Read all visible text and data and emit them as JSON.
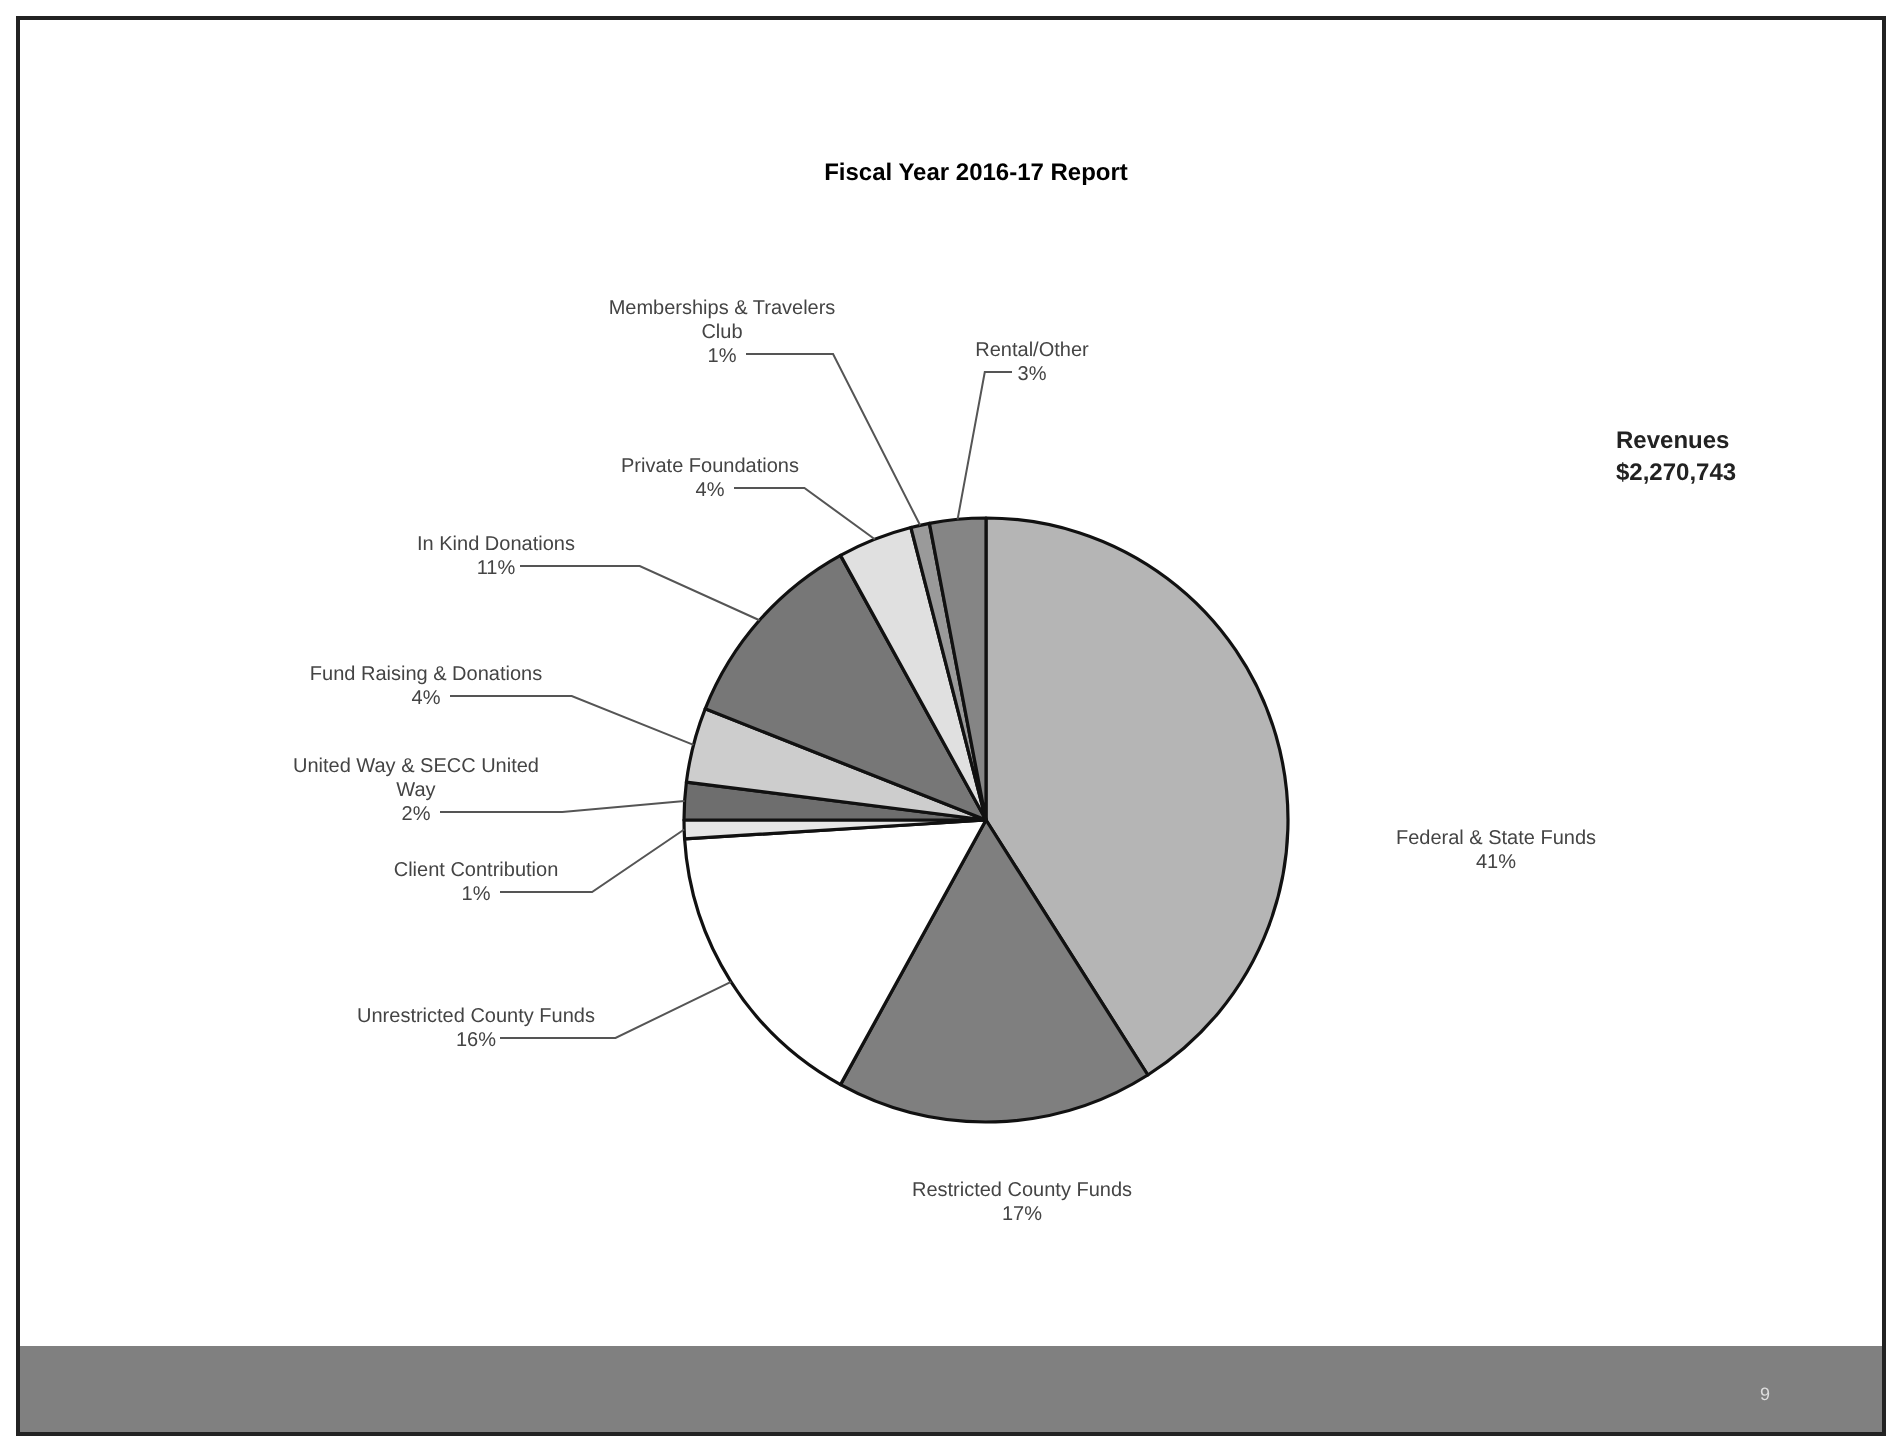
{
  "chart_data": {
    "type": "pie",
    "title": "Fiscal Year 2016-17 Report",
    "categories": [
      "Federal & State Funds",
      "Restricted County Funds",
      "Unrestricted County Funds",
      "Client Contribution",
      "United Way & SECC United Way",
      "Fund Raising & Donations",
      "In Kind Donations",
      "Private Foundations",
      "Memberships & Travelers Club",
      "Rental/Other"
    ],
    "values": [
      41,
      17,
      16,
      1,
      2,
      4,
      11,
      4,
      1,
      3
    ],
    "value_labels": [
      "41%",
      "17%",
      "16%",
      "1%",
      "2%",
      "4%",
      "11%",
      "4%",
      "1%",
      "3%"
    ],
    "colors": [
      "#b5b5b5",
      "#7f7f7f",
      "#ffffff",
      "#e6e6e6",
      "#6e6e6e",
      "#cdcdcd",
      "#777777",
      "#e0e0e0",
      "#9a9a9a",
      "#858585"
    ],
    "annotations": [
      "Revenues",
      "$2,270,743",
      "9"
    ]
  }
}
